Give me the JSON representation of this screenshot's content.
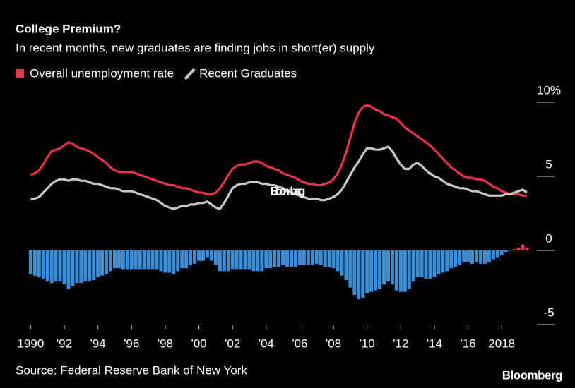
{
  "chart_data": {
    "type": "line",
    "title": "College Premium?",
    "subtitle": "In recent months, new graduates are finding jobs in short(er) supply",
    "source": "Source: Federal Reserve Bank of New York",
    "watermark": "Bloomberg",
    "logo": "Bloomberg",
    "xlim": [
      1989.9,
      2020.3
    ],
    "xticks": [
      1990,
      {
        "value": 1992,
        "label": "'92"
      },
      {
        "value": 1994,
        "label": "'94"
      },
      {
        "value": 1996,
        "label": "'96"
      },
      {
        "value": 1998,
        "label": "'98"
      },
      {
        "value": 2000,
        "label": "'00"
      },
      {
        "value": 2002,
        "label": "'02"
      },
      {
        "value": 2004,
        "label": "'04"
      },
      {
        "value": 2006,
        "label": "'06"
      },
      {
        "value": 2008,
        "label": "'08"
      },
      {
        "value": 2010,
        "label": "'10"
      },
      {
        "value": 2012,
        "label": "'12"
      },
      {
        "value": 2014,
        "label": "'14"
      },
      {
        "value": 2016,
        "label": "'16"
      },
      2018
    ],
    "ylim": [
      -5.5,
      10.5
    ],
    "yticks": [
      {
        "value": 10,
        "label": "10%"
      },
      5,
      0,
      -5
    ],
    "x": [
      1990,
      1990.25,
      1990.5,
      1990.75,
      1991,
      1991.25,
      1991.5,
      1991.75,
      1992,
      1992.25,
      1992.5,
      1992.75,
      1993,
      1993.25,
      1993.5,
      1993.75,
      1994,
      1994.25,
      1994.5,
      1994.75,
      1995,
      1995.25,
      1995.5,
      1995.75,
      1996,
      1996.25,
      1996.5,
      1996.75,
      1997,
      1997.25,
      1997.5,
      1997.75,
      1998,
      1998.25,
      1998.5,
      1998.75,
      1999,
      1999.25,
      1999.5,
      1999.75,
      2000,
      2000.25,
      2000.5,
      2000.75,
      2001,
      2001.25,
      2001.5,
      2001.75,
      2002,
      2002.25,
      2002.5,
      2002.75,
      2003,
      2003.25,
      2003.5,
      2003.75,
      2004,
      2004.25,
      2004.5,
      2004.75,
      2005,
      2005.25,
      2005.5,
      2005.75,
      2006,
      2006.25,
      2006.5,
      2006.75,
      2007,
      2007.25,
      2007.5,
      2007.75,
      2008,
      2008.25,
      2008.5,
      2008.75,
      2009,
      2009.25,
      2009.5,
      2009.75,
      2010,
      2010.25,
      2010.5,
      2010.75,
      2011,
      2011.25,
      2011.5,
      2011.75,
      2012,
      2012.25,
      2012.5,
      2012.75,
      2013,
      2013.25,
      2013.5,
      2013.75,
      2014,
      2014.25,
      2014.5,
      2014.75,
      2015,
      2015.25,
      2015.5,
      2015.75,
      2016,
      2016.25,
      2016.5,
      2016.75,
      2017,
      2017.25,
      2017.5,
      2017.75,
      2018,
      2018.25,
      2018.5,
      2018.75,
      2019,
      2019.25,
      2019.5
    ],
    "series": [
      {
        "name": "Overall unemployment rate",
        "color": "#e8334a",
        "values": [
          5.1,
          5.2,
          5.4,
          5.8,
          6.3,
          6.7,
          6.8,
          6.9,
          7.1,
          7.3,
          7.2,
          7.0,
          6.9,
          6.8,
          6.7,
          6.5,
          6.3,
          6.1,
          5.9,
          5.6,
          5.4,
          5.3,
          5.3,
          5.3,
          5.3,
          5.2,
          5.1,
          5.0,
          4.9,
          4.8,
          4.7,
          4.6,
          4.5,
          4.4,
          4.4,
          4.3,
          4.2,
          4.2,
          4.1,
          4.0,
          3.9,
          3.9,
          3.8,
          3.8,
          3.9,
          4.2,
          4.6,
          5.1,
          5.5,
          5.7,
          5.8,
          5.8,
          5.9,
          6.0,
          6.0,
          5.9,
          5.7,
          5.6,
          5.5,
          5.4,
          5.2,
          5.1,
          5.0,
          4.9,
          4.7,
          4.6,
          4.5,
          4.5,
          4.4,
          4.4,
          4.5,
          4.6,
          4.8,
          5.2,
          5.8,
          6.6,
          7.6,
          8.6,
          9.3,
          9.7,
          9.8,
          9.7,
          9.5,
          9.4,
          9.2,
          9.1,
          9.0,
          8.9,
          8.6,
          8.3,
          8.1,
          7.9,
          7.7,
          7.5,
          7.3,
          7.1,
          6.8,
          6.5,
          6.2,
          5.9,
          5.6,
          5.4,
          5.2,
          5.0,
          4.9,
          4.9,
          4.8,
          4.8,
          4.7,
          4.5,
          4.3,
          4.2,
          4.0,
          3.9,
          3.8,
          3.8,
          3.8,
          3.7,
          3.7
        ]
      },
      {
        "name": "Recent Graduates",
        "color": "#c8c8c8",
        "values": [
          3.5,
          3.5,
          3.6,
          3.9,
          4.2,
          4.5,
          4.7,
          4.8,
          4.8,
          4.7,
          4.8,
          4.8,
          4.7,
          4.7,
          4.6,
          4.5,
          4.5,
          4.4,
          4.3,
          4.2,
          4.2,
          4.1,
          4.0,
          4.0,
          4.0,
          3.9,
          3.8,
          3.7,
          3.6,
          3.5,
          3.4,
          3.2,
          3.0,
          2.9,
          2.8,
          2.9,
          3.0,
          3.0,
          3.1,
          3.1,
          3.2,
          3.2,
          3.3,
          3.1,
          2.9,
          2.8,
          3.2,
          3.7,
          4.2,
          4.4,
          4.5,
          4.5,
          4.6,
          4.6,
          4.6,
          4.5,
          4.5,
          4.4,
          4.4,
          4.3,
          4.2,
          4.0,
          3.9,
          3.8,
          3.7,
          3.6,
          3.5,
          3.5,
          3.5,
          3.4,
          3.4,
          3.5,
          3.6,
          3.8,
          4.1,
          4.6,
          5.1,
          5.6,
          6.0,
          6.5,
          6.9,
          6.9,
          6.8,
          6.8,
          6.9,
          7.0,
          6.7,
          6.2,
          5.8,
          5.5,
          5.5,
          5.8,
          5.9,
          5.7,
          5.4,
          5.2,
          5.0,
          4.9,
          4.7,
          4.5,
          4.4,
          4.3,
          4.2,
          4.2,
          4.1,
          4.0,
          4.0,
          3.9,
          3.8,
          3.7,
          3.7,
          3.7,
          3.7,
          3.8,
          3.8,
          3.9,
          4.0,
          4.1,
          3.9
        ]
      }
    ],
    "bars": {
      "color": "#3a8ed8",
      "positive_color": "#e8334a",
      "values": [
        -1.6,
        -1.7,
        -1.8,
        -1.9,
        -2.1,
        -2.2,
        -2.1,
        -2.1,
        -2.3,
        -2.6,
        -2.4,
        -2.2,
        -2.2,
        -2.1,
        -2.1,
        -2.0,
        -1.8,
        -1.7,
        -1.6,
        -1.4,
        -1.2,
        -1.2,
        -1.3,
        -1.3,
        -1.3,
        -1.3,
        -1.3,
        -1.3,
        -1.3,
        -1.3,
        -1.3,
        -1.4,
        -1.5,
        -1.5,
        -1.6,
        -1.4,
        -1.2,
        -1.2,
        -1.0,
        -0.9,
        -0.7,
        -0.7,
        -0.5,
        -0.7,
        -1.0,
        -1.4,
        -1.4,
        -1.4,
        -1.3,
        -1.3,
        -1.3,
        -1.3,
        -1.3,
        -1.4,
        -1.4,
        -1.4,
        -1.2,
        -1.2,
        -1.1,
        -1.1,
        -1.0,
        -1.1,
        -1.1,
        -1.1,
        -1.0,
        -1.0,
        -1.0,
        -1.0,
        -0.9,
        -1.0,
        -1.1,
        -1.1,
        -1.2,
        -1.4,
        -1.7,
        -2.0,
        -2.5,
        -3.0,
        -3.3,
        -3.2,
        -2.9,
        -2.8,
        -2.7,
        -2.6,
        -2.3,
        -2.1,
        -2.3,
        -2.7,
        -2.8,
        -2.8,
        -2.6,
        -2.1,
        -1.8,
        -1.8,
        -1.9,
        -1.9,
        -1.8,
        -1.6,
        -1.5,
        -1.4,
        -1.2,
        -1.1,
        -1.0,
        -0.8,
        -0.8,
        -0.9,
        -0.8,
        -0.9,
        -0.9,
        -0.8,
        -0.6,
        -0.5,
        -0.3,
        -0.1,
        0,
        0.1,
        0.2,
        0.4,
        0.2
      ]
    }
  }
}
